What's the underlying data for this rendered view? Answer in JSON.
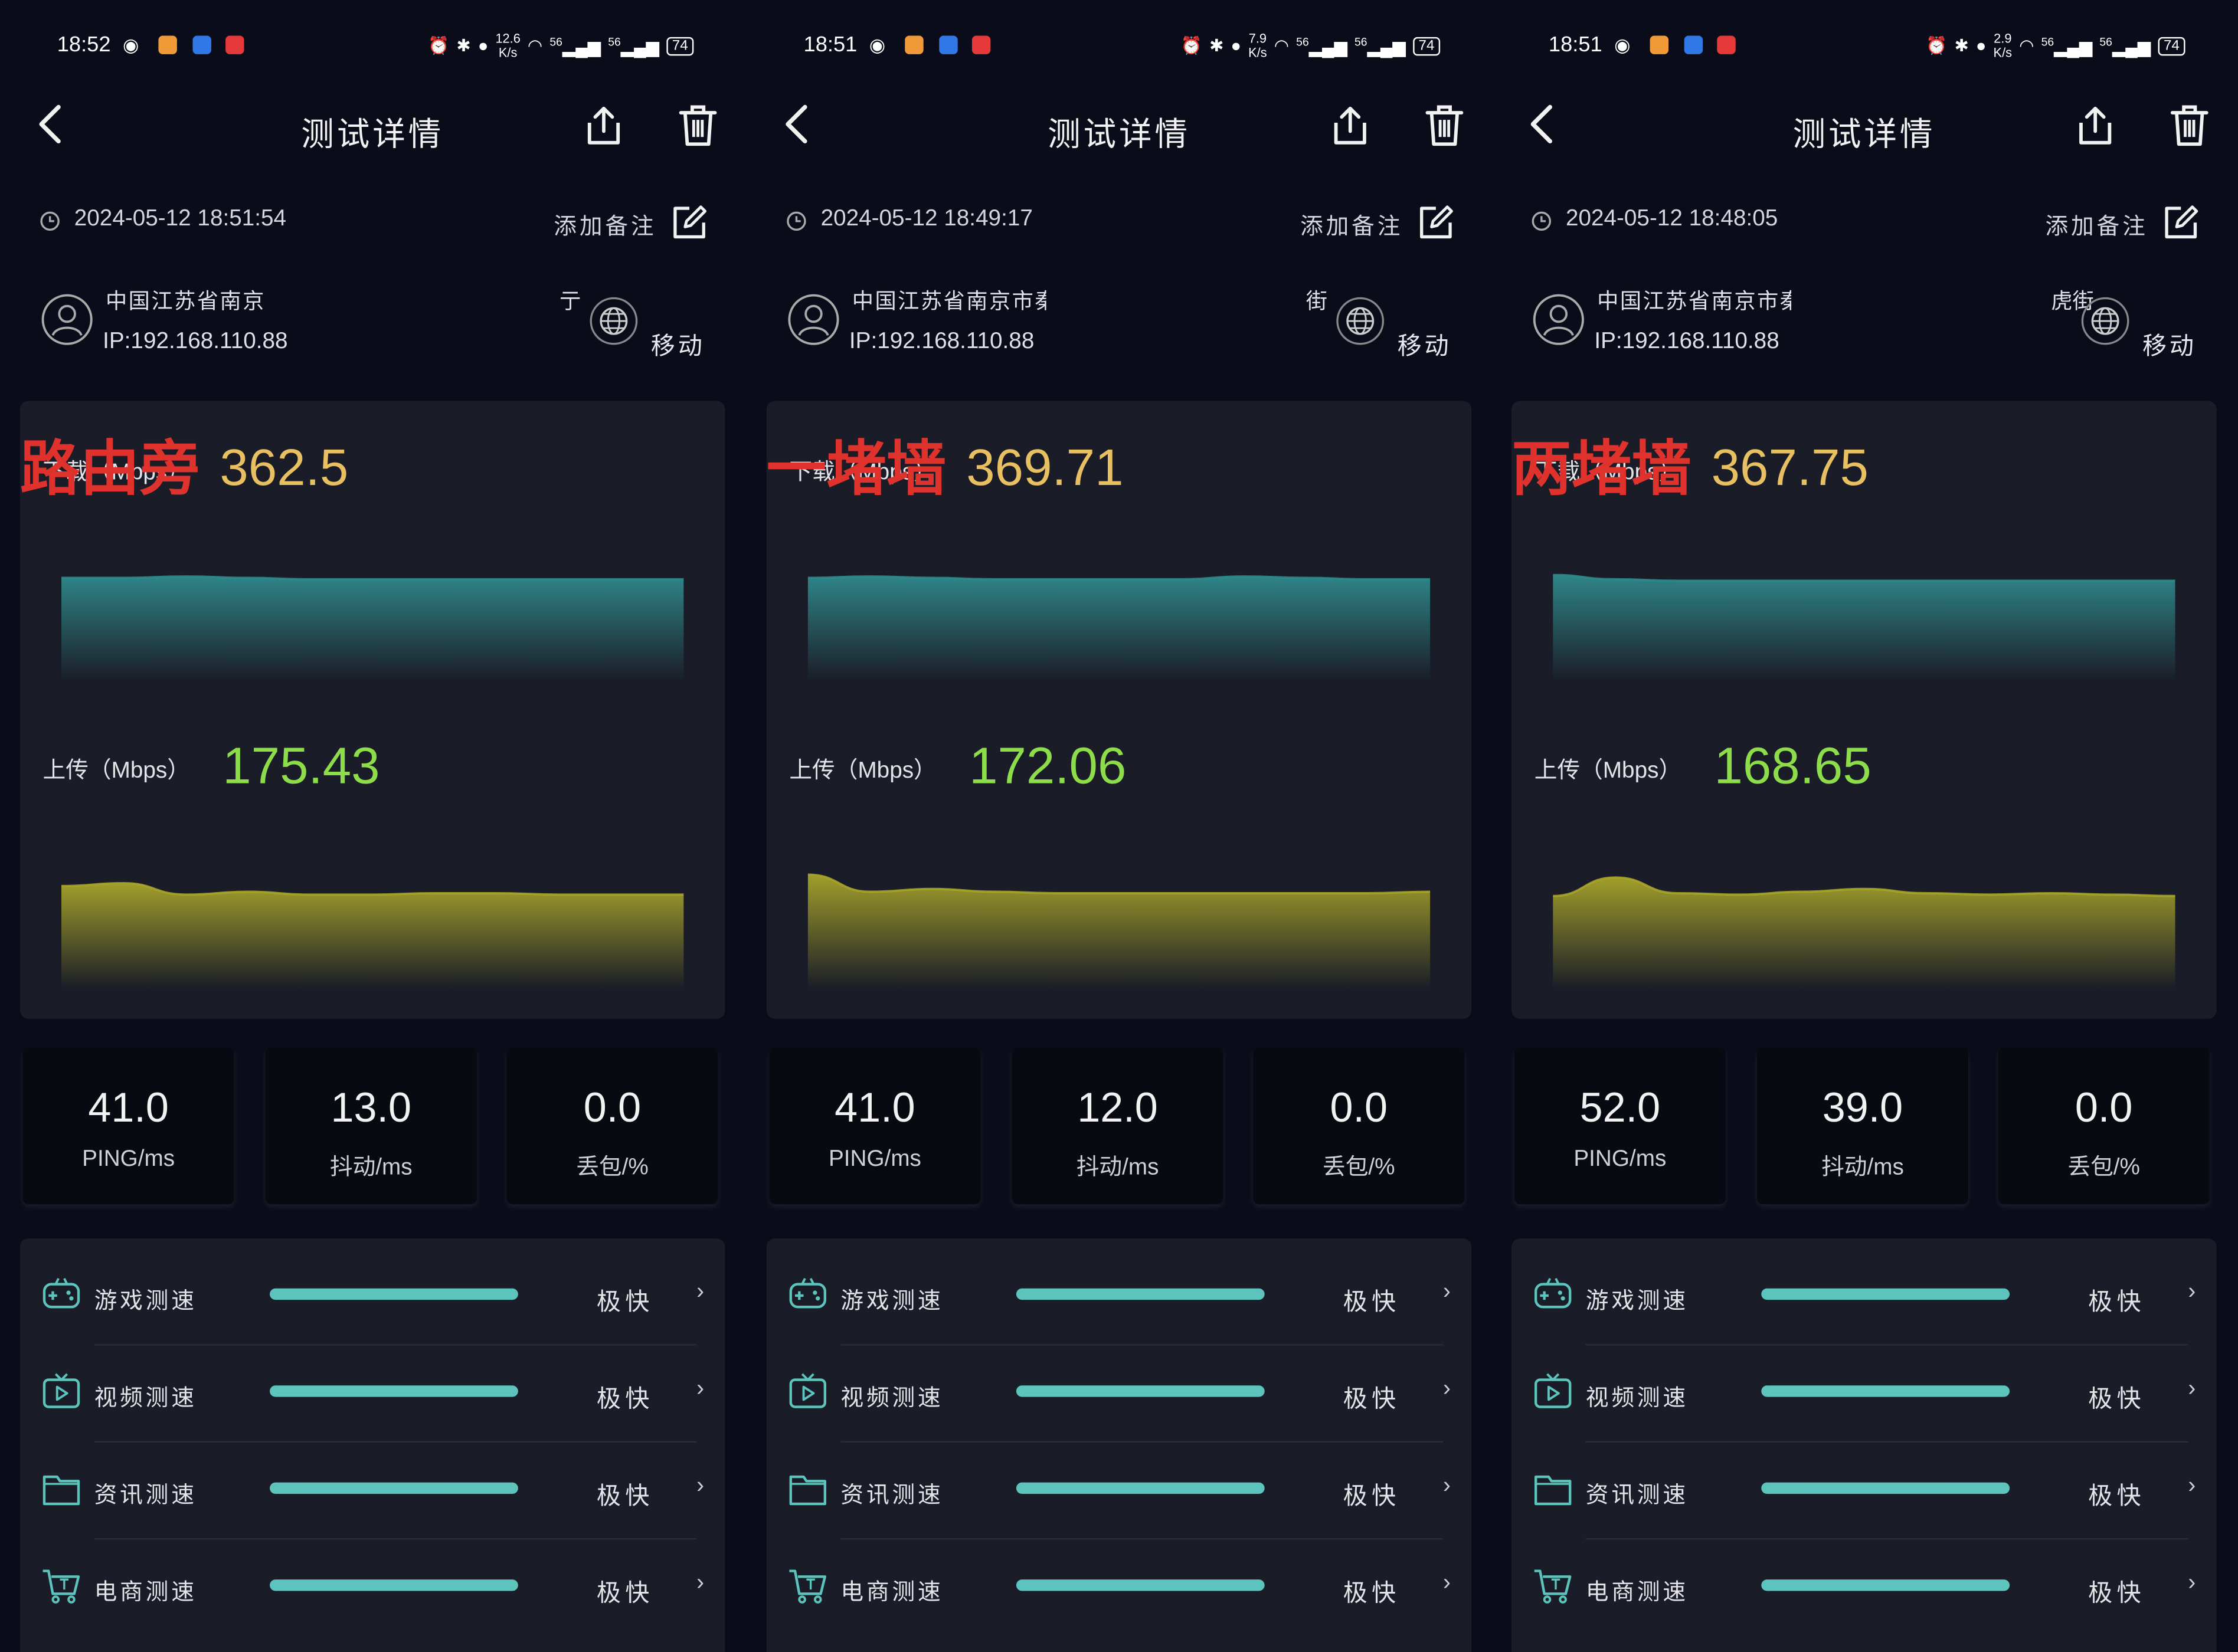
{
  "screens": [
    {
      "status": {
        "time": "18:52",
        "speed": "12.6",
        "speed_unit": "K/s",
        "net1": "56",
        "net2": "56",
        "battery": "74"
      },
      "title": "测试详情",
      "datetime": "2024-05-12 18:51:54",
      "add_note": "添加备注",
      "location": "中国江苏省南京",
      "location_tail": "亍",
      "ip": "IP:192.168.110.88",
      "isp": "移动",
      "download_label": "下载（Mbps）",
      "download": "362.5",
      "upload_label": "上传（Mbps）",
      "upload": "175.43",
      "annotation": "路由旁",
      "ping": "41.0",
      "ping_label": "PING/ms",
      "jitter": "13.0",
      "jitter_label": "抖动/ms",
      "loss": "0.0",
      "loss_label": "丢包/%",
      "tests": [
        {
          "name": "游戏测速",
          "rating": "极快",
          "icon": "gamepad-icon"
        },
        {
          "name": "视频测速",
          "rating": "极快",
          "icon": "tv-icon"
        },
        {
          "name": "资讯测速",
          "rating": "极快",
          "icon": "folder-icon"
        },
        {
          "name": "电商测速",
          "rating": "极快",
          "icon": "cart-icon"
        }
      ]
    },
    {
      "status": {
        "time": "18:51",
        "speed": "7.9",
        "speed_unit": "K/s",
        "net1": "56",
        "net2": "56",
        "battery": "74"
      },
      "title": "测试详情",
      "datetime": "2024-05-12 18:49:17",
      "add_note": "添加备注",
      "location": "中国江苏省南京市秦淮",
      "location_tail": "街",
      "ip": "IP:192.168.110.88",
      "isp": "移动",
      "download_label": "下载（Mbps）",
      "download": "369.71",
      "upload_label": "上传（Mbps）",
      "upload": "172.06",
      "annotation": "一堵墙",
      "ping": "41.0",
      "ping_label": "PING/ms",
      "jitter": "12.0",
      "jitter_label": "抖动/ms",
      "loss": "0.0",
      "loss_label": "丢包/%",
      "tests": [
        {
          "name": "游戏测速",
          "rating": "极快",
          "icon": "gamepad-icon"
        },
        {
          "name": "视频测速",
          "rating": "极快",
          "icon": "tv-icon"
        },
        {
          "name": "资讯测速",
          "rating": "极快",
          "icon": "folder-icon"
        },
        {
          "name": "电商测速",
          "rating": "极快",
          "icon": "cart-icon"
        }
      ]
    },
    {
      "status": {
        "time": "18:51",
        "speed": "2.9",
        "speed_unit": "K/s",
        "net1": "56",
        "net2": "56",
        "battery": "74"
      },
      "title": "测试详情",
      "datetime": "2024-05-12 18:48:05",
      "add_note": "添加备注",
      "location": "中国江苏省南京市秦淮",
      "location_tail": "虎街",
      "ip": "IP:192.168.110.88",
      "isp": "移动",
      "download_label": "下载（Mbps）",
      "download": "367.75",
      "upload_label": "上传（Mbps）",
      "upload": "168.65",
      "annotation": "两堵墙",
      "ping": "52.0",
      "ping_label": "PING/ms",
      "jitter": "39.0",
      "jitter_label": "抖动/ms",
      "loss": "0.0",
      "loss_label": "丢包/%",
      "tests": [
        {
          "name": "游戏测速",
          "rating": "极快",
          "icon": "gamepad-icon"
        },
        {
          "name": "视频测速",
          "rating": "极快",
          "icon": "tv-icon"
        },
        {
          "name": "资讯测速",
          "rating": "极快",
          "icon": "folder-icon"
        },
        {
          "name": "电商测速",
          "rating": "极快",
          "icon": "cart-icon"
        }
      ]
    }
  ],
  "colors": {
    "background": "#0b0c1a",
    "card": "#1a1d27",
    "download": "#e8c062",
    "upload": "#8ddc4a",
    "annotation": "#e0322d",
    "bar": "#5cc3bd",
    "dl_fill": "#2f8a8c",
    "ul_fill": "#a8a52a"
  }
}
